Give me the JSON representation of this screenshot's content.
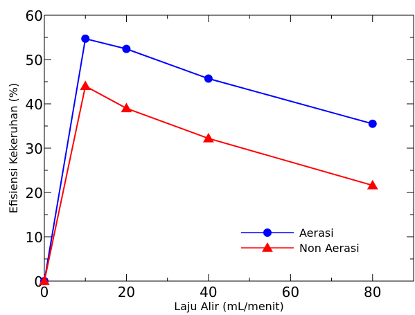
{
  "chart_data": {
    "type": "line",
    "title": "",
    "xlabel": "Laju Alir (mL/menit)",
    "ylabel": "Efisiensi Kekeruhan (%)",
    "xlim": [
      0,
      90
    ],
    "ylim": [
      0,
      60
    ],
    "xticks": [
      0,
      20,
      40,
      60,
      80
    ],
    "yticks": [
      0,
      10,
      20,
      30,
      40,
      50,
      60
    ],
    "grid": false,
    "legend_position": "bottom-right",
    "series": [
      {
        "name": "Aerasi",
        "marker": "circle",
        "color": "#0000ff",
        "x": [
          0,
          10,
          20,
          40,
          80
        ],
        "y": [
          0,
          54.7,
          52.4,
          45.7,
          35.5
        ]
      },
      {
        "name": "Non Aerasi",
        "marker": "triangle",
        "color": "#ff0000",
        "x": [
          0,
          10,
          20,
          40,
          80
        ],
        "y": [
          0,
          44.0,
          39.0,
          32.2,
          21.6
        ]
      }
    ]
  }
}
